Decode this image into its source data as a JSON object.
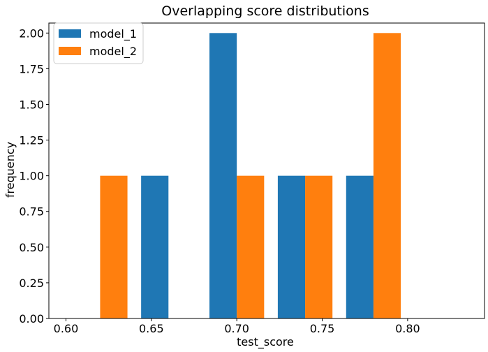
{
  "chart_data": {
    "type": "bar",
    "title": "Overlapping score distributions",
    "xlabel": "test_score",
    "ylabel": "frequency",
    "xlim": [
      0.59,
      0.845
    ],
    "ylim": [
      0,
      2.07
    ],
    "x_ticks": [
      0.6,
      0.65,
      0.7,
      0.75,
      0.8
    ],
    "x_tick_labels": [
      "0.60",
      "0.65",
      "0.70",
      "0.75",
      "0.80"
    ],
    "y_ticks": [
      0.0,
      0.25,
      0.5,
      0.75,
      1.0,
      1.25,
      1.5,
      1.75,
      2.0
    ],
    "y_tick_labels": [
      "0.00",
      "0.25",
      "0.50",
      "0.75",
      "1.00",
      "1.25",
      "1.50",
      "1.75",
      "2.00"
    ],
    "grid": false,
    "legend_position": "top-left",
    "bar_width": 0.016,
    "series": [
      {
        "name": "model_1",
        "color": "#1f77b4",
        "bars": [
          {
            "x": 0.644,
            "value": 1
          },
          {
            "x": 0.684,
            "value": 2
          },
          {
            "x": 0.724,
            "value": 1
          },
          {
            "x": 0.764,
            "value": 1
          }
        ]
      },
      {
        "name": "model_2",
        "color": "#ff7f0e",
        "bars": [
          {
            "x": 0.62,
            "value": 1
          },
          {
            "x": 0.7,
            "value": 1
          },
          {
            "x": 0.74,
            "value": 1
          },
          {
            "x": 0.78,
            "value": 2
          }
        ]
      }
    ]
  }
}
